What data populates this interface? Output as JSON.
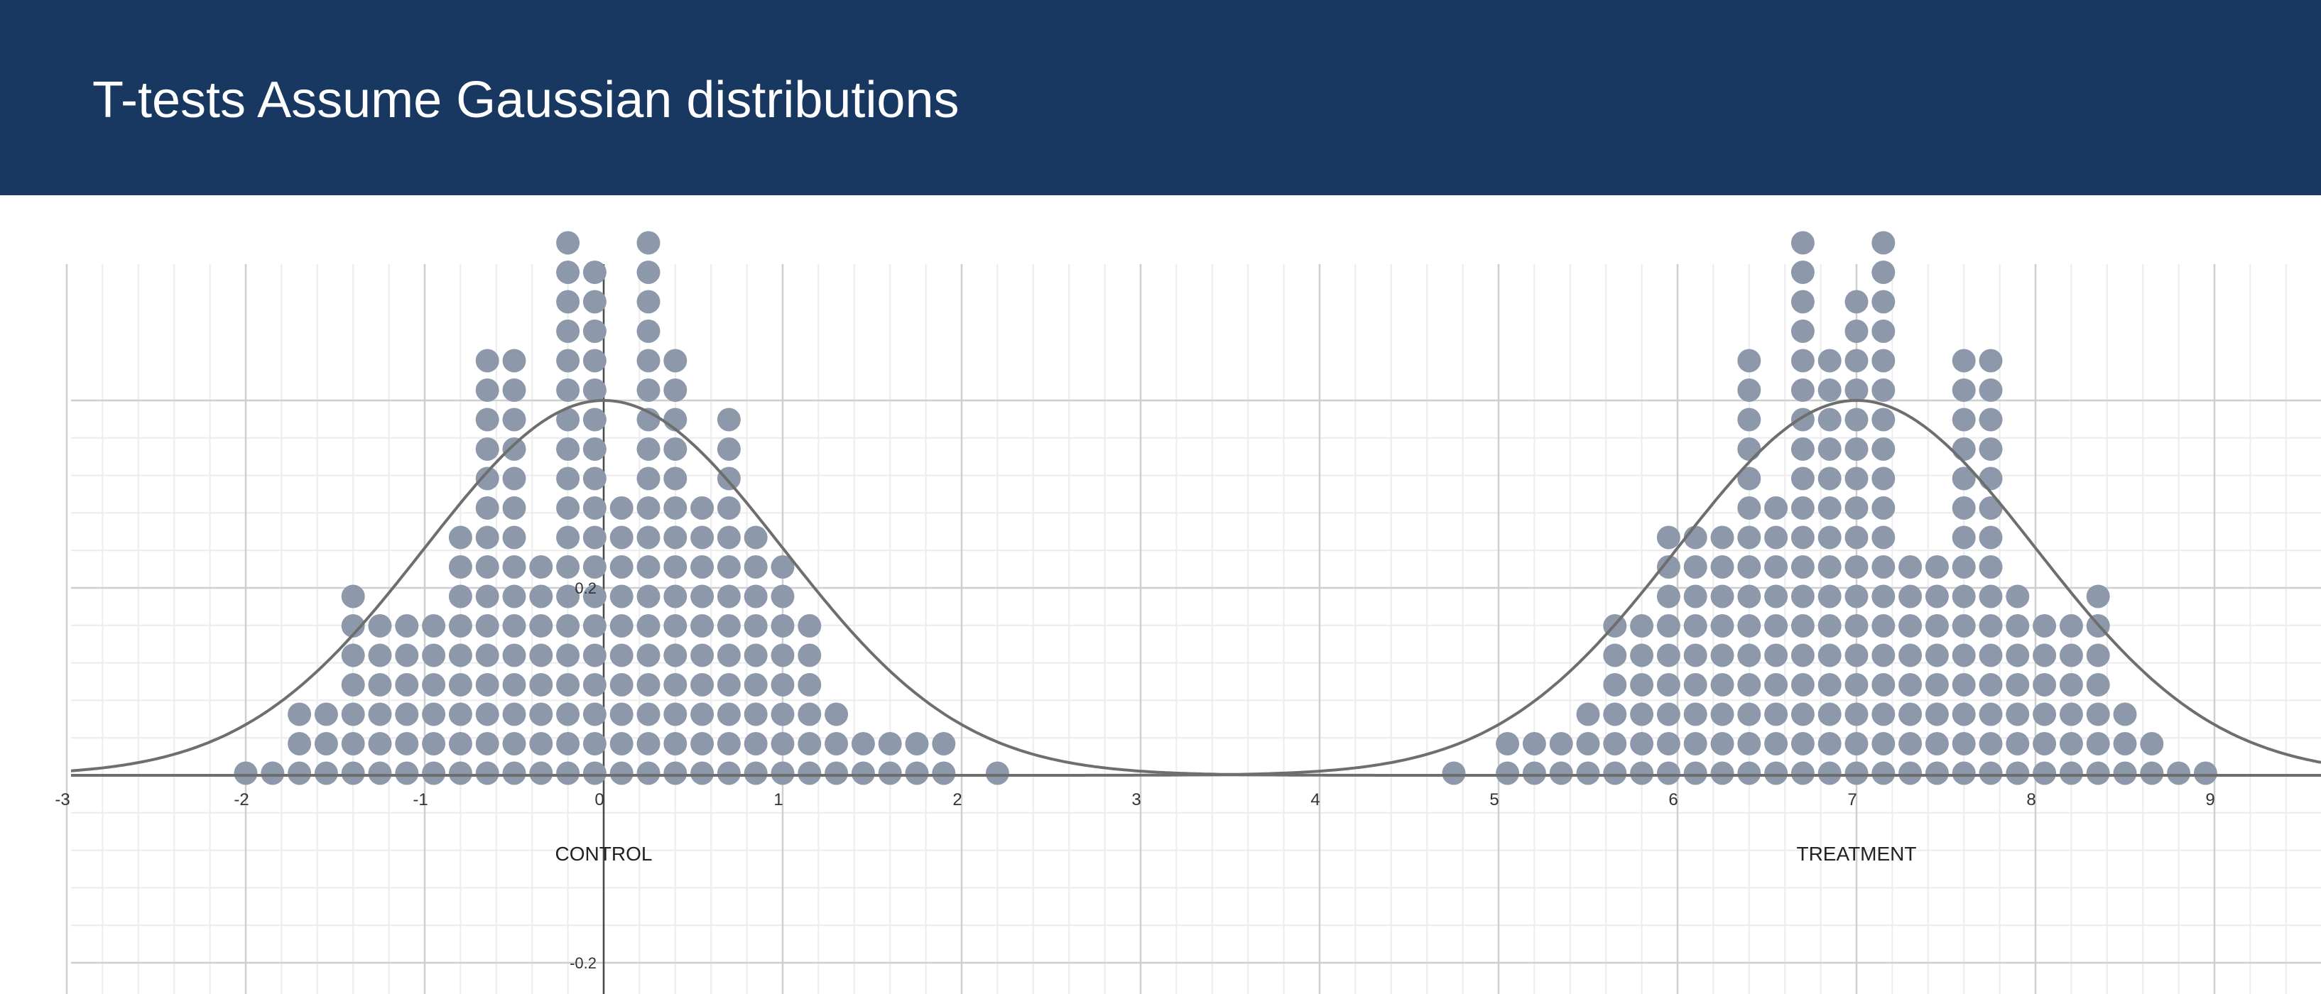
{
  "slide": {
    "title": "T-tests Assume Gaussian distributions",
    "header_color": "#183861"
  },
  "chart_data": {
    "type": "scatter",
    "subtype": "dot plot with fitted normal curves",
    "title": "T-tests Assume Gaussian distributions",
    "x_range": [
      -3,
      9.7
    ],
    "y_range": [
      -0.2,
      0.4
    ],
    "grid": true,
    "dot_color": "#8d99aa",
    "curve_color": "#6e6e6e",
    "x_tick_labels": [
      "-3",
      "-2",
      "-1",
      "0",
      "1",
      "2",
      "3",
      "4",
      "5",
      "6",
      "7",
      "8",
      "9"
    ],
    "x_tick_values": [
      -3,
      -2,
      -1,
      0,
      1,
      2,
      3,
      4,
      5,
      6,
      7,
      8,
      9
    ],
    "y_tick_labels": [
      {
        "value": 0.2,
        "label": "0.2"
      },
      {
        "value": -0.2,
        "label": "-0.2"
      }
    ],
    "groups": [
      {
        "label": "CONTROL",
        "label_position": 0,
        "mean": 0,
        "sd": 1,
        "dot_columns": {
          "x": [
            -2.0,
            -1.85,
            -1.7,
            -1.55,
            -1.4,
            -1.25,
            -1.1,
            -0.95,
            -0.8,
            -0.65,
            -0.5,
            -0.35,
            -0.2,
            -0.05,
            0.1,
            0.25,
            0.4,
            0.55,
            0.7,
            0.85,
            1.0,
            1.15,
            1.3,
            1.45,
            1.6,
            1.75,
            1.9,
            2.2
          ],
          "count": [
            1,
            1,
            3,
            3,
            7,
            6,
            6,
            6,
            9,
            15,
            15,
            8,
            19,
            18,
            10,
            19,
            15,
            10,
            13,
            9,
            8,
            6,
            3,
            2,
            2,
            2,
            2,
            1
          ]
        }
      },
      {
        "label": "TREATMENT",
        "label_position": 7,
        "mean": 7,
        "sd": 1,
        "dot_columns": {
          "x": [
            4.75,
            5.05,
            5.2,
            5.35,
            5.5,
            5.65,
            5.8,
            5.95,
            6.1,
            6.25,
            6.4,
            6.55,
            6.7,
            6.85,
            7.0,
            7.15,
            7.3,
            7.45,
            7.6,
            7.75,
            7.9,
            8.05,
            8.2,
            8.35,
            8.5,
            8.65,
            8.8,
            8.95
          ],
          "count": [
            1,
            2,
            2,
            2,
            3,
            6,
            6,
            9,
            9,
            9,
            15,
            10,
            19,
            15,
            17,
            19,
            8,
            8,
            15,
            15,
            7,
            6,
            6,
            7,
            3,
            2,
            1,
            1
          ]
        }
      }
    ]
  }
}
